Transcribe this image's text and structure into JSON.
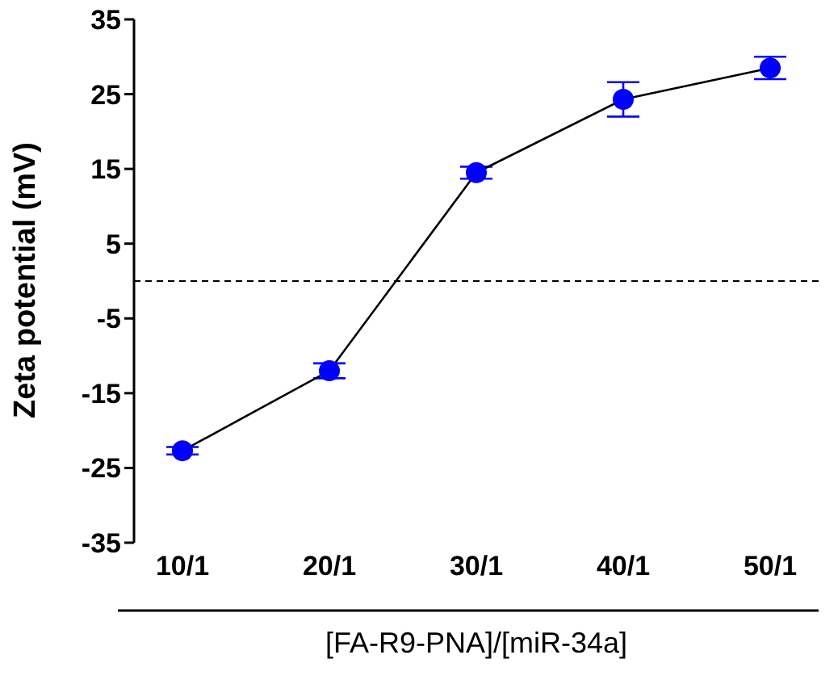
{
  "chart_data": {
    "type": "line",
    "xlabel": "[FA-R9-PNA]/[miR-34a]",
    "ylabel": "Zeta potential (mV)",
    "categories": [
      "10/1",
      "20/1",
      "30/1",
      "40/1",
      "50/1"
    ],
    "series": [
      {
        "color": "#0000ff",
        "values": [
          -22.7,
          -12,
          14.5,
          24.3,
          28.5
        ],
        "errors": [
          0.5,
          1,
          0.8,
          2.3,
          1.5
        ]
      }
    ],
    "ylim": [
      -35,
      35
    ],
    "yticks": [
      -35,
      -25,
      -15,
      -5,
      5,
      15,
      25,
      35
    ],
    "grid": false,
    "legend": false,
    "marker": "circle",
    "line_style": "solid",
    "ref_lines": [
      {
        "axis": "y",
        "value": 0,
        "line_style": "dashed"
      }
    ]
  }
}
